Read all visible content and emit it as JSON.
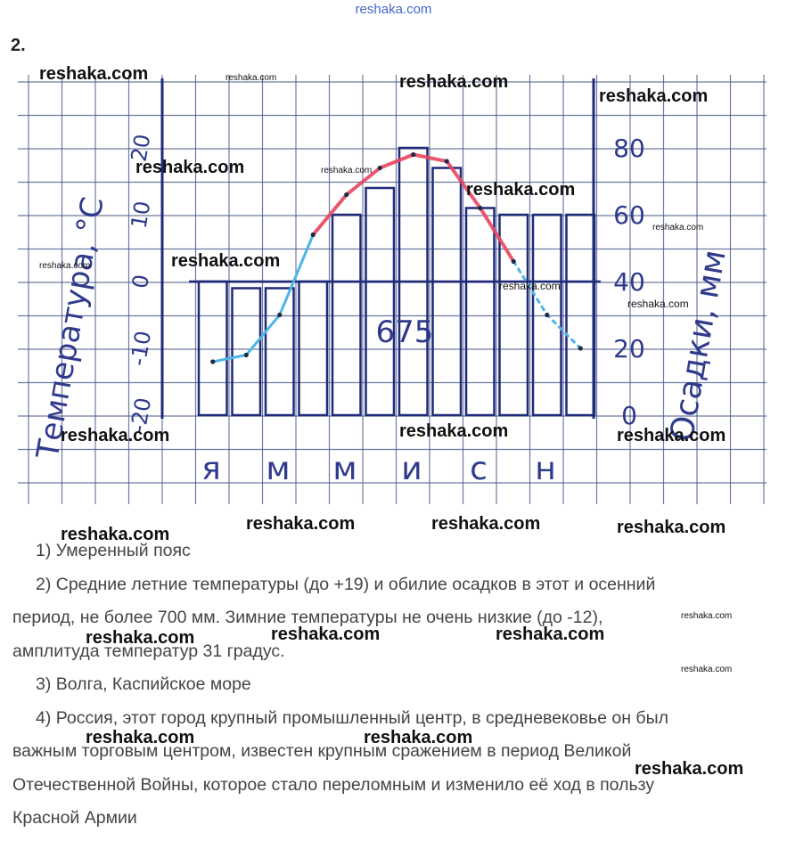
{
  "site_header": "reshaka.com",
  "task_number": "2.",
  "chart_data": {
    "type": "bar",
    "title": "",
    "categories": [
      "я",
      "",
      "м",
      "",
      "м",
      "",
      "и",
      "",
      "с",
      "",
      "н",
      ""
    ],
    "month_labels": [
      "я",
      "м",
      "м",
      "и",
      "с",
      "н"
    ],
    "left_axis_label": "Температура, °C",
    "right_axis_label": "Осадки, мм",
    "temperature_ticks": [
      "20",
      "10",
      "0",
      "-10",
      "-20"
    ],
    "precipitation_ticks": [
      "80",
      "60",
      "40",
      "20",
      "0"
    ],
    "ylim_temperature": [
      -20,
      20
    ],
    "ylim_precipitation": [
      0,
      80
    ],
    "series": [
      {
        "name": "",
        "axis": "precipitation",
        "values": [
          40,
          38,
          38,
          40,
          60,
          68,
          80,
          74,
          62,
          60,
          60,
          60
        ]
      },
      {
        "name": "",
        "axis": "temperature",
        "values": [
          -12,
          -11,
          -5,
          7,
          13,
          17,
          19,
          18,
          11,
          3,
          -5,
          -10
        ]
      }
    ],
    "annotation": "675",
    "colors": {
      "grid": "#4a5a8a",
      "bars": "#1f2a78",
      "warm_line": "#e8455e",
      "cold_line": "#4fb4e6",
      "pencil": "#2f3a8c"
    }
  },
  "answers": [
    "1) Умеренный пояс",
    "2) Средние летние температуры (до +19) и обилие осадков в этот и осенний",
    "период, не более 700 мм. Зимние температуры не очень низкие (до -12),",
    "амплитуда температур 31 градус.",
    "3) Волга, Каспийское море",
    "4) Россия, этот город крупный промышленный центр, в средневековье он был",
    "важным торговым центром, известен крупным сражением в период Великой",
    "Отечественной Войны, которое стало переломным и изменило её ход в пользу",
    "Красной Армии"
  ],
  "watermark": "reshaka.com"
}
